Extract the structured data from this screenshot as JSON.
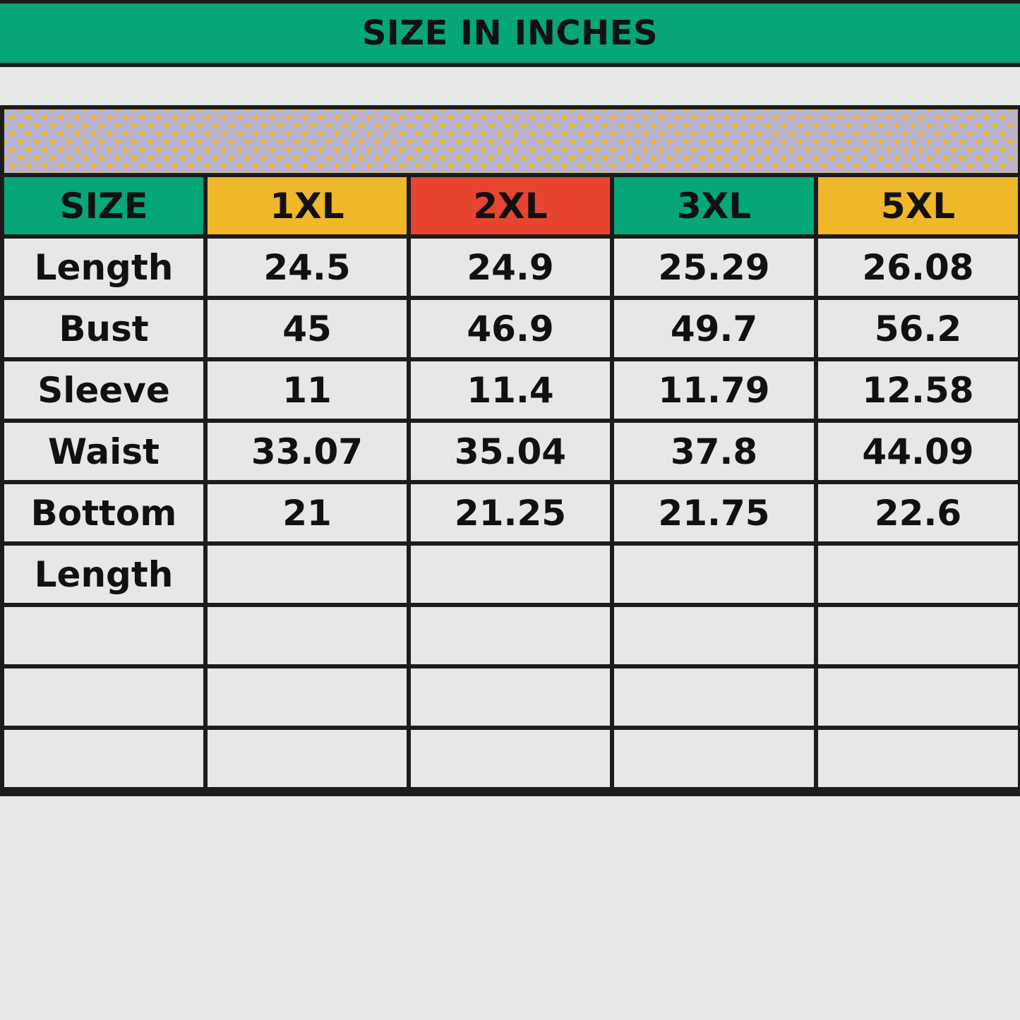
{
  "title": "SIZE IN INCHES",
  "colors": {
    "green": "#05a678",
    "yellow": "#efb729",
    "red": "#e84530",
    "band": "#b7b4d2"
  },
  "headers": [
    {
      "label": "SIZE",
      "color": "#05a678"
    },
    {
      "label": "1XL",
      "color": "#efb729"
    },
    {
      "label": "2XL",
      "color": "#e84530"
    },
    {
      "label": "3XL",
      "color": "#05a678"
    },
    {
      "label": "5XL",
      "color": "#efb729"
    }
  ],
  "rows": [
    [
      "Length",
      "24.5",
      "24.9",
      "25.29",
      "26.08"
    ],
    [
      "Bust",
      "45",
      "46.9",
      "49.7",
      "56.2"
    ],
    [
      "Sleeve",
      "11",
      "11.4",
      "11.79",
      "12.58"
    ],
    [
      "Waist",
      "33.07",
      "35.04",
      "37.8",
      "44.09"
    ],
    [
      "Bottom",
      "21",
      "21.25",
      "21.75",
      "22.6"
    ],
    [
      "Length",
      "",
      "",
      "",
      ""
    ],
    [
      "",
      "",
      "",
      "",
      ""
    ],
    [
      "",
      "",
      "",
      "",
      ""
    ],
    [
      "",
      "",
      "",
      "",
      ""
    ]
  ]
}
